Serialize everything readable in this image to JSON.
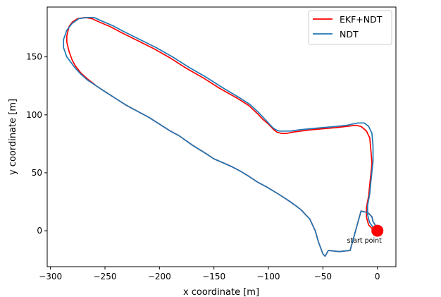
{
  "chart_data": {
    "type": "line",
    "xlabel": "x coordinate [m]",
    "ylabel": "y coordinate [m]",
    "xlim": [
      -303,
      17
    ],
    "ylim": [
      -31,
      193
    ],
    "xticks": [
      -300,
      -250,
      -200,
      -150,
      -100,
      -50,
      0
    ],
    "yticks": [
      0,
      50,
      100,
      150
    ],
    "grid": false,
    "legend": "top-right",
    "series": [
      {
        "name": "EKF+NDT",
        "color": "#ff0000",
        "x": [
          0,
          -2,
          -4,
          -5,
          -8,
          -10,
          -13,
          -15,
          -25,
          -35,
          -45,
          -48,
          -50,
          -52,
          -54,
          -57,
          -62,
          -66,
          -70,
          -74,
          -80,
          -88,
          -95,
          -102,
          -110,
          -118,
          -125,
          -133,
          -140,
          -150,
          -158,
          -165,
          -170,
          -176,
          -182,
          -190,
          -200,
          -210,
          -220,
          -230,
          -240,
          -250,
          -258,
          -266,
          -272,
          -277,
          -280,
          -283,
          -285,
          -285,
          -283,
          -280,
          -275,
          -268,
          -262,
          -255,
          -245,
          -235,
          -220,
          -205,
          -190,
          -175,
          -160,
          -145,
          -128,
          -118,
          -110,
          -105,
          -100,
          -95,
          -92,
          -88,
          -83,
          -78,
          -70,
          -62,
          -50,
          -38,
          -28,
          -20,
          -15,
          -10,
          -7,
          -6,
          -5,
          -7,
          -8,
          -10,
          -10,
          -9,
          -8,
          -5,
          -3,
          -2,
          0
        ],
        "y": [
          0,
          5,
          8,
          12,
          15,
          16,
          16.5,
          17,
          -17,
          -18,
          -17,
          -22,
          -20,
          -15,
          -10,
          0,
          10,
          14,
          18,
          21,
          25,
          30,
          34,
          38,
          42,
          47,
          51,
          55,
          58,
          62,
          67,
          71,
          74,
          78,
          82,
          86,
          92,
          98,
          103,
          108,
          114,
          120,
          125,
          131,
          136,
          142,
          147,
          155,
          163,
          168,
          176,
          180,
          183,
          184,
          183,
          180,
          176,
          171,
          164,
          157,
          149,
          140,
          132,
          123,
          114,
          108,
          101,
          96,
          92,
          87,
          85,
          84,
          84,
          85,
          86,
          87,
          88,
          89,
          90,
          91,
          90,
          86,
          80,
          70,
          58,
          40,
          30,
          20,
          12,
          8,
          5,
          2,
          0.5,
          0,
          0
        ]
      },
      {
        "name": "NDT",
        "color": "#1f77b4",
        "x": [
          0,
          -2,
          -4,
          -5,
          -8,
          -10,
          -13,
          -15,
          -25,
          -35,
          -45,
          -48,
          -50,
          -52,
          -54,
          -57,
          -62,
          -66,
          -70,
          -74,
          -80,
          -88,
          -95,
          -102,
          -110,
          -118,
          -125,
          -133,
          -140,
          -150,
          -158,
          -165,
          -170,
          -176,
          -182,
          -190,
          -200,
          -210,
          -220,
          -230,
          -240,
          -250,
          -258,
          -266,
          -272,
          -277,
          -281,
          -285,
          -288,
          -288,
          -285,
          -280,
          -274,
          -266,
          -260,
          -253,
          -243,
          -233,
          -218,
          -203,
          -188,
          -173,
          -158,
          -143,
          -127,
          -117,
          -109,
          -104,
          -100,
          -96,
          -93,
          -90,
          -86,
          -80,
          -72,
          -62,
          -50,
          -38,
          -28,
          -18,
          -12,
          -8,
          -5,
          -4,
          -4,
          -6,
          -7,
          -9,
          -9,
          -8,
          -7,
          -4,
          -2,
          -1,
          0
        ],
        "y": [
          0,
          5,
          8,
          12,
          15,
          16,
          16.5,
          17,
          -17,
          -18,
          -17,
          -22,
          -20,
          -15,
          -10,
          0,
          10,
          14,
          18,
          21,
          25,
          30,
          34,
          38,
          42,
          47,
          51,
          55,
          58,
          62,
          67,
          71,
          74,
          78,
          82,
          86,
          92,
          98,
          103,
          108,
          114,
          120,
          125,
          130,
          135,
          140,
          145,
          150,
          158,
          165,
          173,
          179,
          183,
          184,
          184,
          181,
          177,
          172,
          165,
          158,
          150,
          141,
          133,
          124,
          115,
          109,
          102,
          97,
          93,
          89,
          87,
          86,
          86,
          86,
          87,
          88,
          89,
          90,
          91,
          93,
          93,
          90,
          84,
          73,
          60,
          42,
          32,
          22,
          14,
          10,
          7,
          3,
          1,
          0,
          0
        ]
      }
    ],
    "annotations": [
      {
        "text": "start point",
        "x": -12,
        "y": -8
      }
    ],
    "start_marker": {
      "x": 0,
      "y": 0,
      "color": "#ff0000"
    }
  }
}
